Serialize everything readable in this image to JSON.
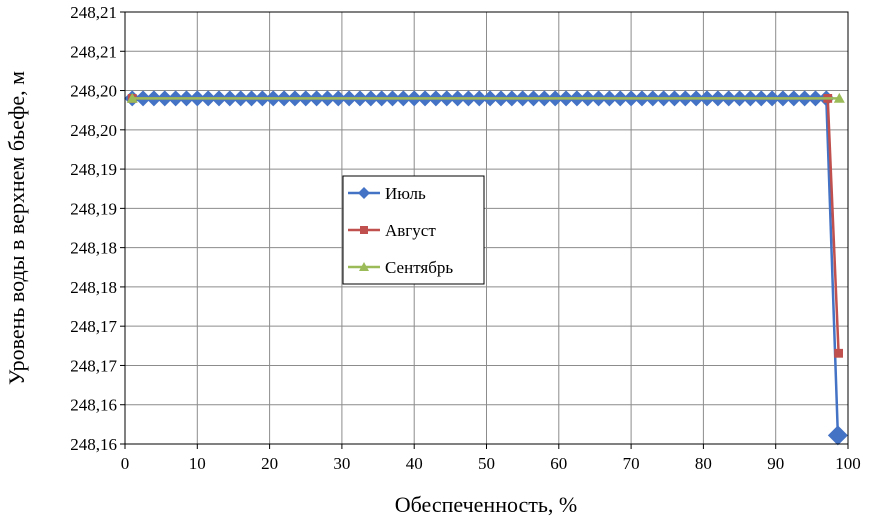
{
  "chart_data": {
    "type": "line",
    "title": "",
    "xlabel": "Обеспеченность, %",
    "ylabel": "Уровень воды в верхнем бьефе, м",
    "xlim": [
      0,
      100
    ],
    "ylim": [
      248.16,
      248.21
    ],
    "x_ticks": [
      "0",
      "10",
      "20",
      "30",
      "40",
      "50",
      "60",
      "70",
      "80",
      "90",
      "100"
    ],
    "y_ticks": [
      "248,16",
      "248,16",
      "248,17",
      "248,17",
      "248,18",
      "248,18",
      "248,19",
      "248,19",
      "248,20",
      "248,20",
      "248,21",
      "248,21"
    ],
    "grid": true,
    "legend_position": "center-left",
    "series": [
      {
        "name": "Июль",
        "color": "#4472C4",
        "marker": "diamond",
        "x": [
          1,
          2.5,
          4,
          5.5,
          7,
          8.5,
          10,
          11.5,
          13,
          14.5,
          16,
          17.5,
          19,
          20.5,
          22,
          23.5,
          25,
          26.5,
          28,
          29.5,
          31,
          32.5,
          34,
          35.5,
          37,
          38.5,
          40,
          41.5,
          43,
          44.5,
          46,
          47.5,
          49,
          50.5,
          52,
          53.5,
          55,
          56.5,
          58,
          59.5,
          61,
          62.5,
          64,
          65.5,
          67,
          68.5,
          70,
          71.5,
          73,
          74.5,
          76,
          77.5,
          79,
          80.5,
          82,
          83.5,
          85,
          86.5,
          88,
          89.5,
          91,
          92.5,
          94,
          95.5,
          97,
          98.6
        ],
        "y": [
          248.2,
          248.2,
          248.2,
          248.2,
          248.2,
          248.2,
          248.2,
          248.2,
          248.2,
          248.2,
          248.2,
          248.2,
          248.2,
          248.2,
          248.2,
          248.2,
          248.2,
          248.2,
          248.2,
          248.2,
          248.2,
          248.2,
          248.2,
          248.2,
          248.2,
          248.2,
          248.2,
          248.2,
          248.2,
          248.2,
          248.2,
          248.2,
          248.2,
          248.2,
          248.2,
          248.2,
          248.2,
          248.2,
          248.2,
          248.2,
          248.2,
          248.2,
          248.2,
          248.2,
          248.2,
          248.2,
          248.2,
          248.2,
          248.2,
          248.2,
          248.2,
          248.2,
          248.2,
          248.2,
          248.2,
          248.2,
          248.2,
          248.2,
          248.2,
          248.2,
          248.2,
          248.2,
          248.2,
          248.2,
          248.2,
          248.161
        ]
      },
      {
        "name": "Август",
        "color": "#C0504D",
        "marker": "square",
        "x": [
          1,
          97.2,
          98.7
        ],
        "y": [
          248.2,
          248.2,
          248.1705
        ]
      },
      {
        "name": "Сентябрь",
        "color": "#9BBB59",
        "marker": "triangle",
        "x": [
          1,
          98.8
        ],
        "y": [
          248.2,
          248.2
        ]
      }
    ]
  }
}
